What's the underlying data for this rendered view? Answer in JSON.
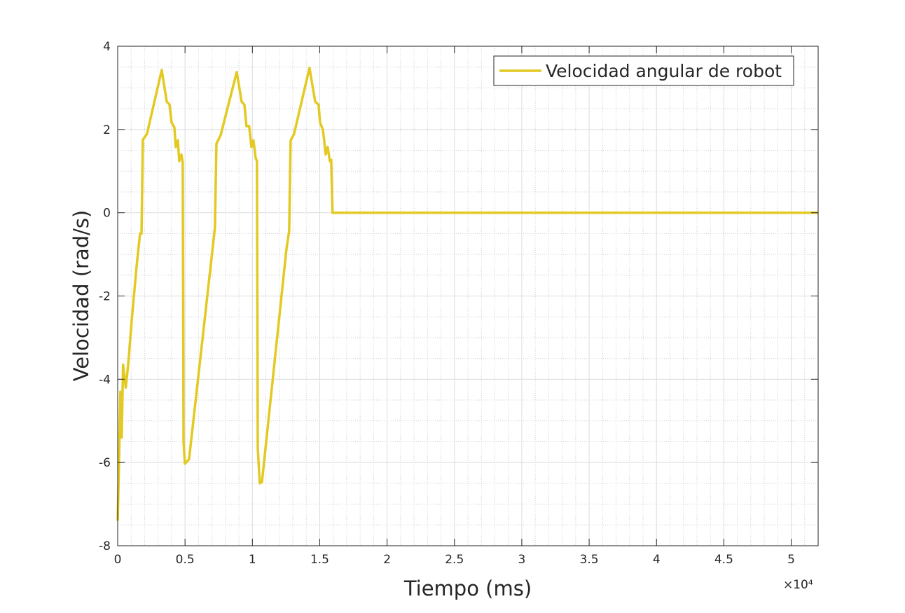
{
  "chart_data": {
    "type": "line",
    "xlabel": "Tiempo (ms)",
    "ylabel": "Velocidad (rad/s)",
    "x_exponent": "×10⁴",
    "legend": "upper right",
    "grid": true,
    "minor_grid": true,
    "xlim": [
      0,
      52000
    ],
    "ylim": [
      -8,
      4
    ],
    "xticks": [
      0,
      {
        "value": 5000,
        "label": "0.5"
      },
      {
        "value": 10000,
        "label": "1"
      },
      {
        "value": 15000,
        "label": "1.5"
      },
      {
        "value": 20000,
        "label": "2"
      },
      {
        "value": 25000,
        "label": "2.5"
      },
      {
        "value": 30000,
        "label": "3"
      },
      {
        "value": 35000,
        "label": "3.5"
      },
      {
        "value": 40000,
        "label": "4"
      },
      {
        "value": 45000,
        "label": "4.5"
      },
      {
        "value": 50000,
        "label": "5"
      }
    ],
    "yticks": [
      -8,
      -6,
      -4,
      -2,
      0,
      2,
      4
    ],
    "xminor": [
      1000,
      2000,
      3000,
      4000,
      6000,
      7000,
      8000,
      9000,
      11000,
      12000,
      13000,
      14000,
      16000,
      17000,
      18000,
      19000,
      21000,
      22000,
      23000,
      24000,
      26000,
      27000,
      28000,
      29000,
      31000,
      32000,
      33000,
      34000,
      36000,
      37000,
      38000,
      39000,
      41000,
      42000,
      43000,
      44000,
      46000,
      47000,
      48000,
      49000,
      51000
    ],
    "yminor": [
      -7.5,
      -7,
      -6.5,
      -5.5,
      -5,
      -4.5,
      -3.5,
      -3,
      -2.5,
      -1.5,
      -1,
      -0.5,
      0.5,
      1,
      1.5,
      2.5,
      3,
      3.5
    ],
    "x": [
      0,
      100,
      200,
      300,
      400,
      600,
      780,
      1040,
      1400,
      1660,
      1770,
      1870,
      2180,
      3270,
      3640,
      3850,
      4000,
      4210,
      4310,
      4470,
      4570,
      4730,
      4830,
      4890,
      4990,
      5300,
      7220,
      7330,
      7640,
      8840,
      9200,
      9410,
      9560,
      9760,
      9930,
      10080,
      10240,
      10340,
      10400,
      10550,
      10710,
      12530,
      12730,
      12840,
      13100,
      14240,
      14660,
      14920,
      15020,
      15230,
      15330,
      15440,
      15590,
      15750,
      15850,
      15950,
      52000
    ],
    "series": [
      {
        "name": "Velocidad angular de robot",
        "color": "#e3c921",
        "values": [
          -7.4,
          -6.0,
          -4.3,
          -5.4,
          -3.65,
          -4.2,
          -3.65,
          -2.6,
          -1.3,
          -0.5,
          -0.5,
          1.75,
          1.9,
          3.43,
          2.67,
          2.6,
          2.17,
          2.05,
          1.58,
          1.74,
          1.24,
          1.4,
          1.2,
          -5.5,
          -6.03,
          -5.92,
          -0.36,
          1.66,
          1.86,
          3.38,
          2.67,
          2.59,
          2.08,
          2.08,
          1.58,
          1.74,
          1.32,
          1.24,
          -5.66,
          -6.5,
          -6.47,
          -0.87,
          -0.44,
          1.74,
          1.9,
          3.48,
          2.67,
          2.59,
          2.17,
          2.0,
          1.74,
          1.4,
          1.58,
          1.24,
          1.27,
          0,
          0
        ]
      }
    ]
  }
}
